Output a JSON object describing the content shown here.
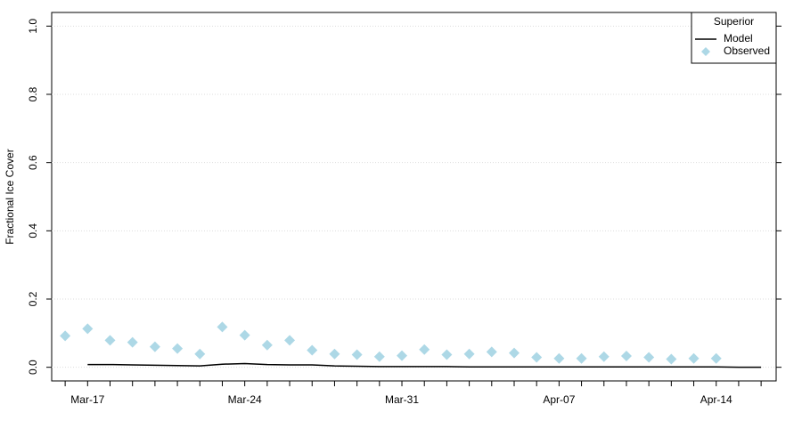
{
  "chart_data": {
    "type": "line",
    "ylabel": "Fractional Ice Cover",
    "categories": [
      null,
      "Mar-17",
      null,
      null,
      null,
      null,
      null,
      null,
      "Mar-24",
      null,
      null,
      null,
      null,
      null,
      null,
      "Mar-31",
      null,
      null,
      null,
      null,
      null,
      null,
      "Apr-07",
      null,
      null,
      null,
      null,
      null,
      null,
      "Apr-14",
      null,
      null
    ],
    "xlim": [
      -0.6,
      31.67
    ],
    "ylim": [
      -0.04,
      1.04
    ],
    "yticks": [
      {
        "value": 0,
        "label": "0.0"
      },
      0.2,
      0.4,
      0.6,
      0.8,
      {
        "value": 1,
        "label": "1.0"
      }
    ],
    "grid": true,
    "legend": {
      "title": "Superior",
      "position": "top-right"
    },
    "series": [
      {
        "name": "Model",
        "color": "#000000",
        "kind": "line",
        "values": [
          null,
          0.008,
          0.008,
          0.007,
          0.006,
          0.005,
          0.004,
          0.009,
          0.011,
          0.008,
          0.007,
          0.007,
          0.004,
          0.003,
          0.002,
          0.002,
          0.002,
          0.002,
          0.001,
          0.001,
          0.001,
          0.001,
          0.001,
          0.001,
          0.001,
          0.001,
          0.001,
          0.001,
          0.001,
          0.001,
          0.0,
          0.0
        ]
      },
      {
        "name": "Observed",
        "color": "#add8e6",
        "kind": "points",
        "values": [
          0.092,
          0.113,
          0.079,
          0.073,
          0.06,
          0.055,
          0.039,
          0.118,
          0.094,
          0.065,
          0.079,
          0.05,
          0.039,
          0.037,
          0.031,
          0.034,
          0.052,
          0.037,
          0.039,
          0.045,
          0.042,
          0.029,
          0.026,
          0.026,
          0.031,
          0.033,
          0.029,
          0.024,
          0.026,
          0.026,
          null,
          null
        ]
      }
    ]
  }
}
